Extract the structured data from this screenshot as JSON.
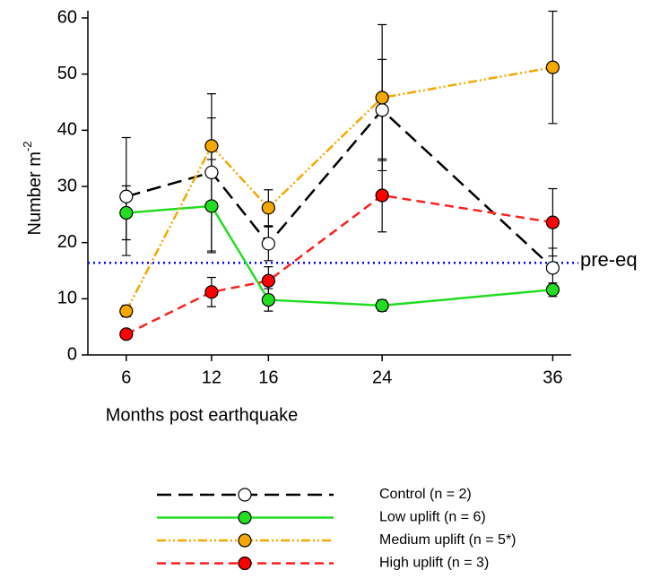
{
  "chart_data": {
    "type": "line",
    "x_label": "Months post earthquake",
    "y_label": "Number m",
    "y_label_superscript": "-2",
    "x": [
      6,
      12,
      16,
      24,
      36
    ],
    "xlim": [
      3.3,
      37.3
    ],
    "xticks": [
      6,
      12,
      16,
      24,
      36
    ],
    "ylim": [
      0,
      60
    ],
    "yticks": [
      0,
      10,
      20,
      30,
      40,
      50,
      60
    ],
    "reference_line": {
      "value": 16.4,
      "label": "pre-eq",
      "color": "#0000ff"
    },
    "series": [
      {
        "name": "Control (n = 2)",
        "color": "#000000",
        "marker_color": "#ffffff",
        "dash": "16,8",
        "values": [
          28.2,
          32.5,
          19.8,
          43.6,
          15.5
        ],
        "errors": [
          10.5,
          14.0,
          3.0,
          9.0,
          3.5
        ]
      },
      {
        "name": "Low uplift (n = 6)",
        "color": "#22dd22",
        "marker_color": "#22dd22",
        "dash": "none",
        "values": [
          25.3,
          26.5,
          9.8,
          8.8,
          11.6
        ],
        "errors": [
          4.8,
          8.3,
          2.0,
          1.0,
          1.2
        ]
      },
      {
        "name": "Medium uplift (n = 5*)",
        "color": "#f5a800",
        "marker_color": "#f5a800",
        "dash": "10,3,2,3,2,3",
        "values": [
          7.8,
          37.2,
          26.2,
          45.8,
          51.2
        ],
        "errors": [
          1.0,
          5.0,
          3.2,
          13.0,
          10.0
        ]
      },
      {
        "name": "High uplift (n = 3)",
        "color": "#ff2020",
        "marker_color": "#ff0000",
        "dash": "10,6",
        "values": [
          3.7,
          11.2,
          13.2,
          28.4,
          23.6
        ],
        "errors": [
          0.5,
          2.6,
          2.5,
          6.5,
          6.0
        ]
      }
    ]
  }
}
